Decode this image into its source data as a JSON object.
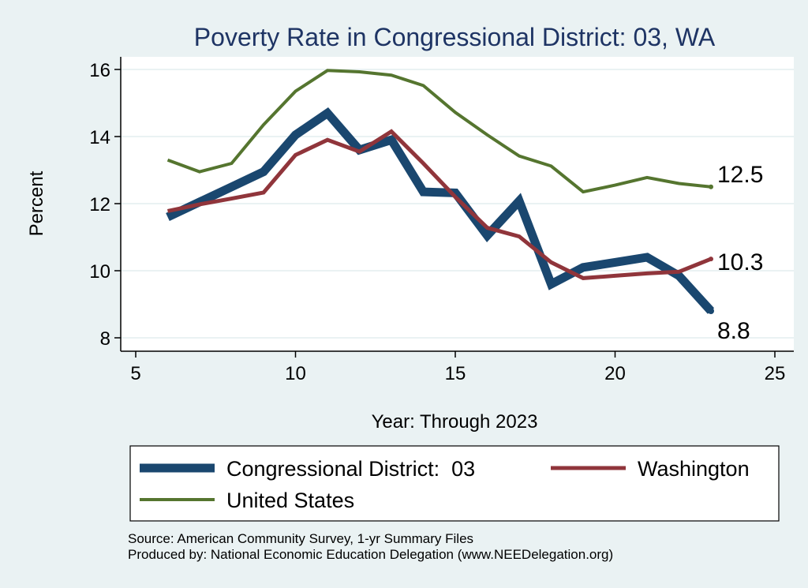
{
  "chart_data": {
    "type": "line",
    "title": "Poverty Rate in Congressional District:  03, WA",
    "xlabel": "Year: Through 2023",
    "ylabel": "Percent",
    "xlim": [
      5,
      25
    ],
    "ylim": [
      7.9,
      16.2
    ],
    "xticks": [
      5,
      10,
      15,
      20,
      25
    ],
    "yticks": [
      8,
      10,
      12,
      14,
      16
    ],
    "grid": true,
    "legend_position": "bottom",
    "series": [
      {
        "name": "Congressional District:  03",
        "color": "#1a476f",
        "x": [
          6,
          7,
          8,
          9,
          10,
          11,
          12,
          13,
          14,
          15,
          16,
          17,
          18,
          19,
          20,
          21,
          22,
          23
        ],
        "y": [
          11.6,
          12.05,
          12.5,
          12.95,
          14.05,
          14.7,
          13.6,
          13.9,
          12.35,
          12.32,
          11.05,
          12.08,
          9.6,
          10.1,
          10.25,
          10.4,
          9.85,
          8.8
        ],
        "end_label": "8.8"
      },
      {
        "name": "Washington",
        "color": "#90353b",
        "x": [
          6,
          7,
          8,
          9,
          10,
          11,
          12,
          13,
          14,
          15,
          16,
          17,
          18,
          19,
          20,
          21,
          22,
          23
        ],
        "y": [
          11.78,
          11.98,
          12.15,
          12.33,
          13.45,
          13.9,
          13.55,
          14.15,
          13.2,
          12.2,
          11.28,
          11.02,
          10.25,
          9.78,
          9.85,
          9.92,
          9.97,
          10.35
        ],
        "end_label": "10.3"
      },
      {
        "name": "United States",
        "color": "#55752f",
        "x": [
          6,
          7,
          8,
          9,
          10,
          11,
          12,
          13,
          14,
          15,
          16,
          17,
          18,
          19,
          20,
          21,
          22,
          23
        ],
        "y": [
          13.3,
          12.95,
          13.2,
          14.35,
          15.35,
          15.97,
          15.93,
          15.83,
          15.52,
          14.72,
          14.05,
          13.42,
          13.12,
          12.35,
          12.55,
          12.78,
          12.6,
          12.5
        ],
        "end_label": "12.5"
      }
    ],
    "notes": [
      "Source: American Community Survey, 1-yr Summary Files",
      "Produced by: National Economic Education Delegation (www.NEEDelegation.org)"
    ]
  }
}
